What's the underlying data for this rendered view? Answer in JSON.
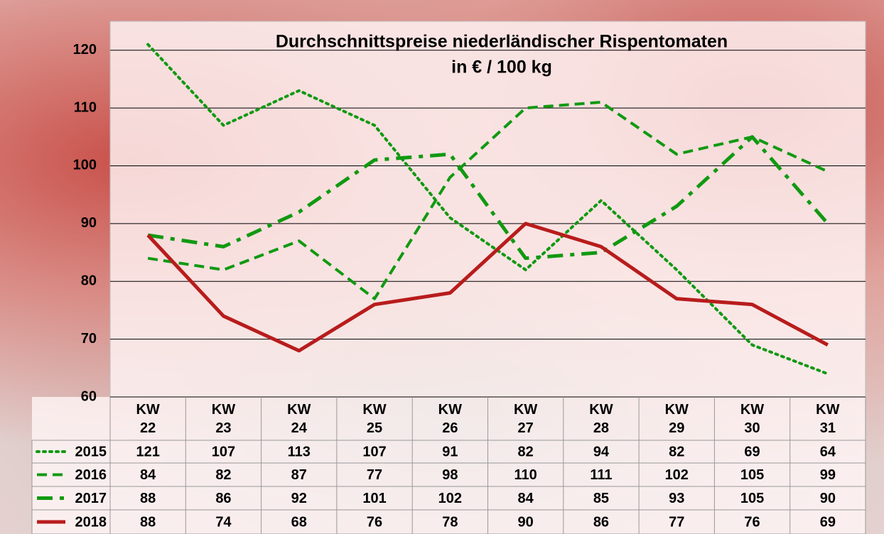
{
  "chart_data": {
    "type": "line",
    "title": "Durchschnittspreise niederländischer Rispentomaten",
    "subtitle": "in € / 100 kg",
    "categories": [
      "KW 22",
      "KW 23",
      "KW 24",
      "KW 25",
      "KW 26",
      "KW 27",
      "KW 28",
      "KW 29",
      "KW 30",
      "KW 31"
    ],
    "series": [
      {
        "name": "2015",
        "color": "#119911",
        "style": "dotted",
        "values": [
          121,
          107,
          113,
          107,
          91,
          82,
          94,
          82,
          69,
          64
        ]
      },
      {
        "name": "2016",
        "color": "#119911",
        "style": "dashed",
        "values": [
          84,
          82,
          87,
          77,
          98,
          110,
          111,
          102,
          105,
          99
        ]
      },
      {
        "name": "2017",
        "color": "#119911",
        "style": "dashdot",
        "values": [
          88,
          86,
          92,
          101,
          102,
          84,
          85,
          93,
          105,
          90
        ]
      },
      {
        "name": "2018",
        "color": "#b81c1c",
        "style": "solid",
        "values": [
          88,
          74,
          68,
          76,
          78,
          90,
          86,
          77,
          76,
          69
        ]
      }
    ],
    "ylim": [
      60,
      125
    ],
    "yticks": [
      60,
      70,
      80,
      90,
      100,
      110,
      120
    ],
    "grid": true
  }
}
